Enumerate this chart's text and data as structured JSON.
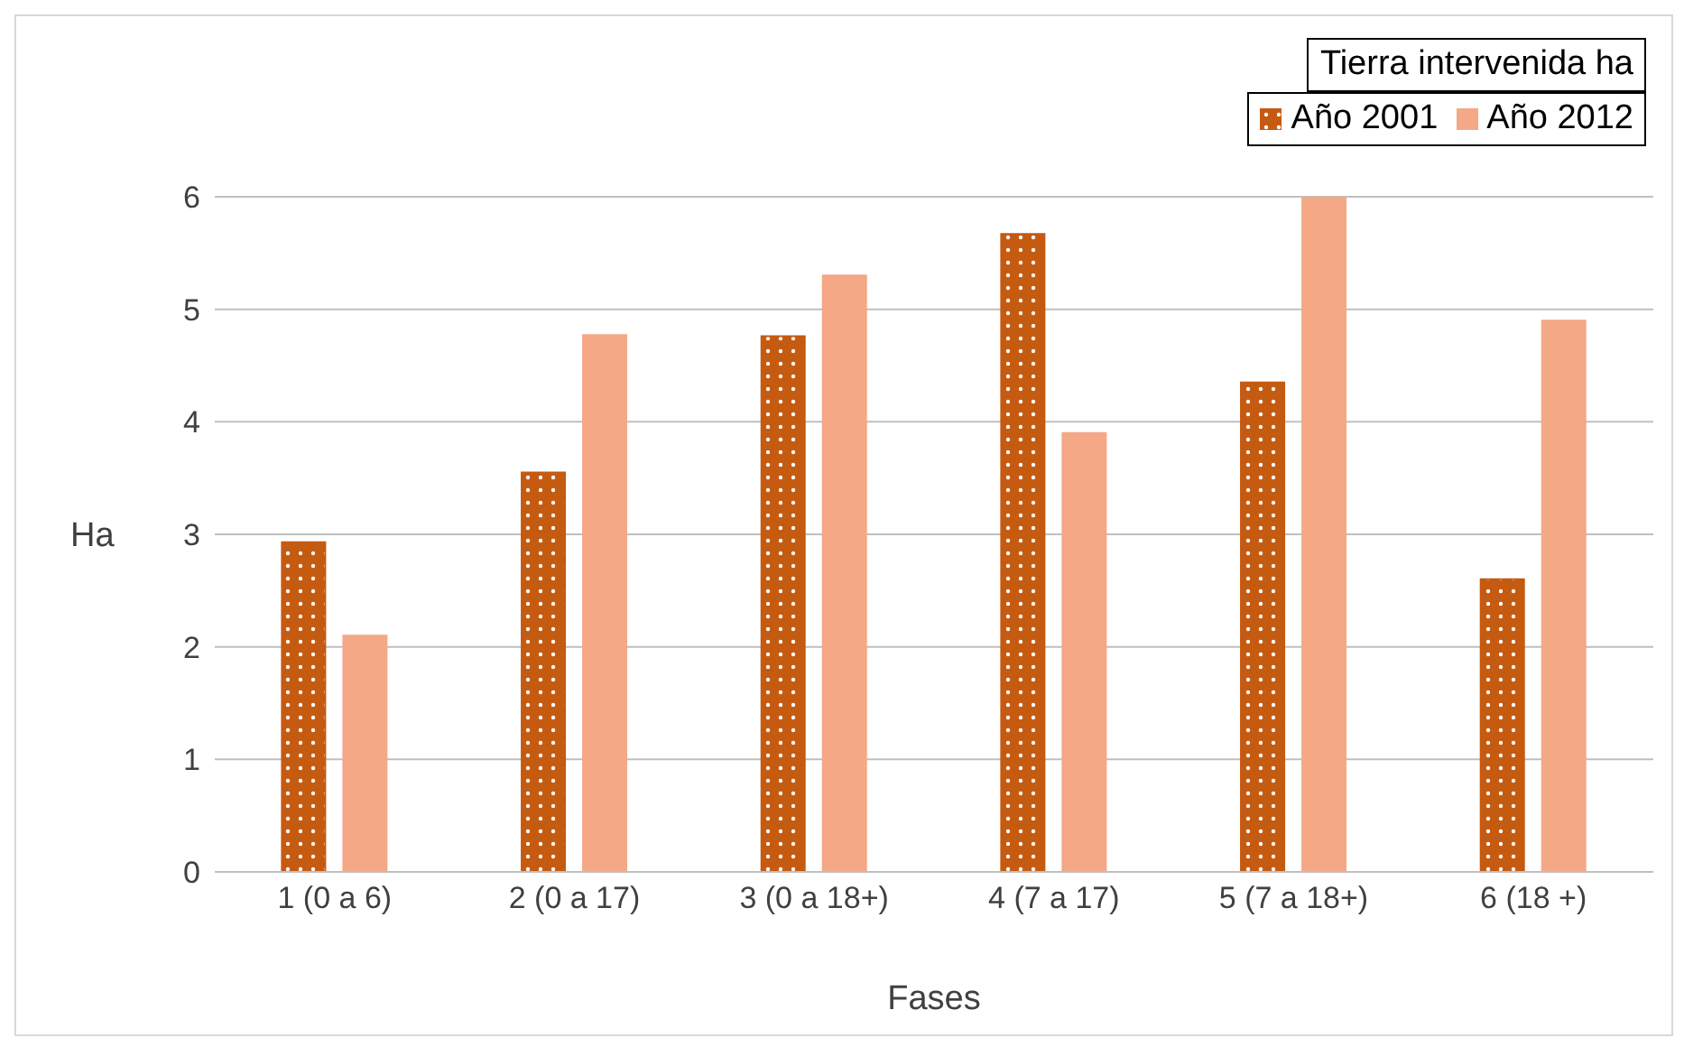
{
  "chart_data": {
    "type": "bar",
    "legend_title": "Tierra intervenida ha",
    "xlabel": "Fases",
    "ylabel": "Ha",
    "categories": [
      "1 (0 a 6)",
      "2 (0 a 17)",
      "3 (0 a 18+)",
      "4 (7 a 17)",
      "5 (7 a 18+)",
      "6 (18 +)"
    ],
    "series": [
      {
        "name": "Año 2001",
        "color": "#c55a11",
        "values": [
          2.93,
          3.55,
          4.76,
          5.67,
          4.35,
          2.6
        ]
      },
      {
        "name": "Año 2012",
        "color": "#f4a886",
        "values": [
          2.1,
          4.77,
          5.3,
          3.9,
          6.0,
          4.9
        ]
      }
    ],
    "ylim": [
      0,
      6
    ],
    "yticks": [
      0,
      1,
      2,
      3,
      4,
      5,
      6
    ],
    "grid": "y",
    "legend": "top right"
  }
}
